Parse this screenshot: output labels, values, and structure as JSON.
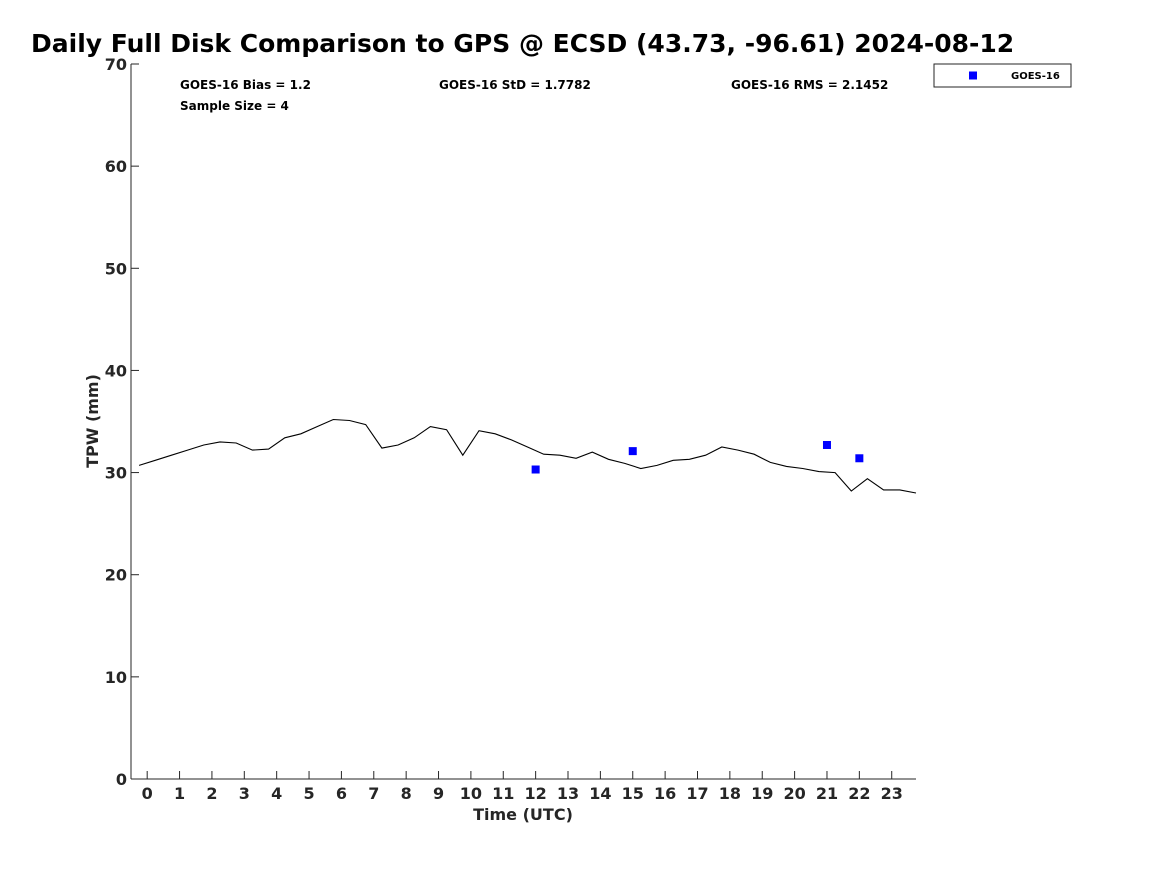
{
  "chart_data": {
    "type": "line",
    "title": "Daily Full Disk Comparison to GPS @ ECSD (43.73, -96.61) 2024-08-12",
    "xlabel": "Time (UTC)",
    "ylabel": "TPW (mm)",
    "xlim": [
      -0.5,
      23.75
    ],
    "ylim": [
      0,
      70
    ],
    "x_ticks": [
      0,
      1,
      2,
      3,
      4,
      5,
      6,
      7,
      8,
      9,
      10,
      11,
      12,
      13,
      14,
      15,
      16,
      17,
      18,
      19,
      20,
      21,
      22,
      23
    ],
    "y_ticks": [
      0,
      10,
      20,
      30,
      40,
      50,
      60,
      70
    ],
    "grid": false,
    "legend_position": "top-right",
    "stats": {
      "bias": "GOES-16 Bias = 1.2",
      "std": "GOES-16 StD = 1.7782",
      "rms": "GOES-16 RMS = 2.1452",
      "sample_size": "Sample Size = 4"
    },
    "series": [
      {
        "style": "line",
        "color": "#000000",
        "x": [
          -0.25,
          0.25,
          0.75,
          1.25,
          1.75,
          2.25,
          2.75,
          3.25,
          3.75,
          4.25,
          4.75,
          5.25,
          5.75,
          6.25,
          6.75,
          7.25,
          7.75,
          8.25,
          8.75,
          9.25,
          9.75,
          10.25,
          10.75,
          11.25,
          11.75,
          12.25,
          12.75,
          13.25,
          13.75,
          14.25,
          14.75,
          15.25,
          15.75,
          16.25,
          16.75,
          17.25,
          17.75,
          18.25,
          18.75,
          19.25,
          19.75,
          20.25,
          20.75,
          21.25,
          21.75,
          22.25,
          22.75,
          23.25,
          23.75
        ],
        "values": [
          30.7,
          31.2,
          31.7,
          32.2,
          32.7,
          33.0,
          32.9,
          32.2,
          32.3,
          33.4,
          33.8,
          34.5,
          35.2,
          35.1,
          34.7,
          32.4,
          32.7,
          33.4,
          34.5,
          34.2,
          31.7,
          34.1,
          33.8,
          33.2,
          32.5,
          31.8,
          31.7,
          31.4,
          32.0,
          31.3,
          30.9,
          30.4,
          30.7,
          31.2,
          31.3,
          31.7,
          32.5,
          32.2,
          31.8,
          31.0,
          30.6,
          30.4,
          30.1,
          30.0,
          28.2,
          29.4,
          28.3,
          28.3,
          28.0
        ]
      },
      {
        "name": "GOES-16",
        "style": "markers",
        "color": "#0000ff",
        "x": [
          12,
          15,
          21,
          22
        ],
        "values": [
          30.3,
          32.1,
          32.7,
          31.4
        ]
      }
    ]
  }
}
